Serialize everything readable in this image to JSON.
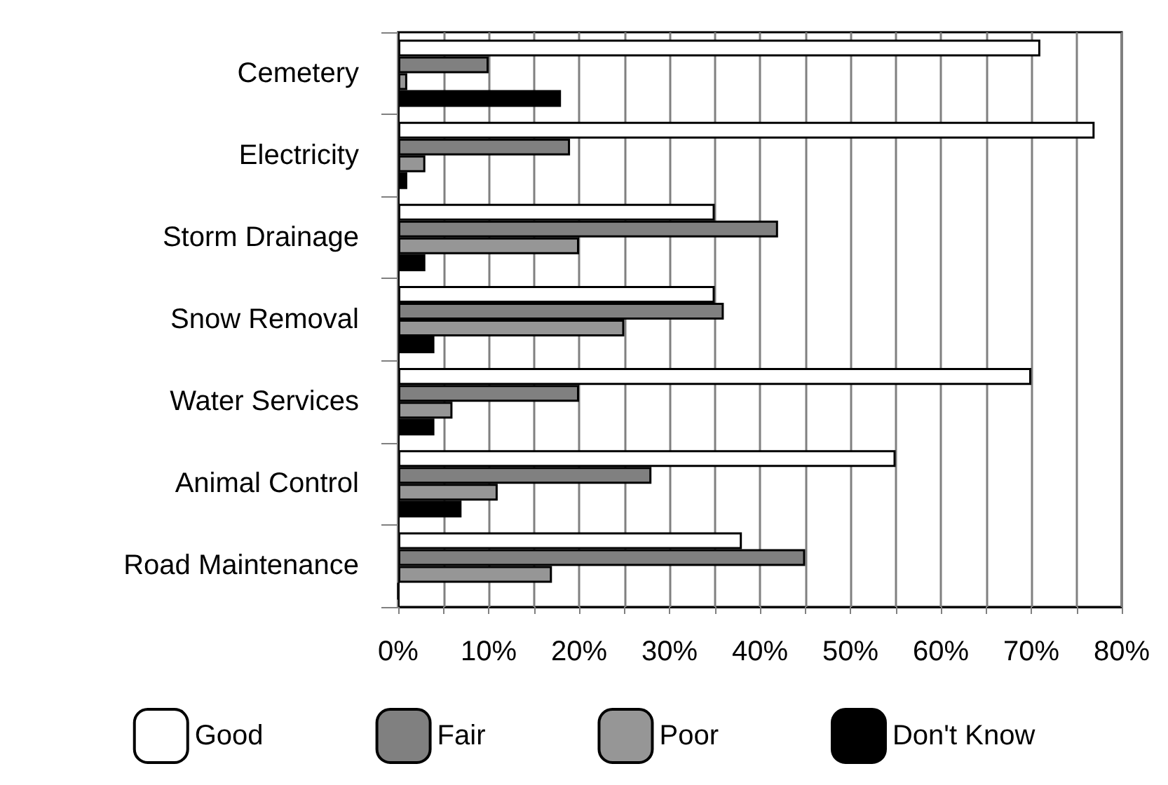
{
  "chart_data": {
    "type": "bar",
    "orientation": "horizontal",
    "categories": [
      "Cemetery",
      "Electricity",
      "Storm Drainage",
      "Snow Removal",
      "Water Services",
      "Animal Control",
      "Road Maintenance"
    ],
    "series": [
      {
        "name": "Good",
        "color": "#ffffff",
        "values": [
          71,
          77,
          35,
          35,
          70,
          55,
          38
        ]
      },
      {
        "name": "Fair",
        "color": "#808080",
        "values": [
          10,
          19,
          42,
          36,
          20,
          28,
          45
        ]
      },
      {
        "name": "Poor",
        "color": "#969696",
        "values": [
          1,
          3,
          20,
          25,
          6,
          11,
          17
        ]
      },
      {
        "name": "Don't Know",
        "color": "#000000",
        "values": [
          18,
          1,
          3,
          4,
          4,
          7,
          0
        ]
      }
    ],
    "xlim": [
      0,
      80
    ],
    "xticks": [
      {
        "value": 0,
        "label": "0%"
      },
      {
        "value": 5,
        "label": null
      },
      {
        "value": 10,
        "label": "10%"
      },
      {
        "value": 15,
        "label": null
      },
      {
        "value": 20,
        "label": "20%"
      },
      {
        "value": 25,
        "label": null
      },
      {
        "value": 30,
        "label": "30%"
      },
      {
        "value": 35,
        "label": null
      },
      {
        "value": 40,
        "label": "40%"
      },
      {
        "value": 45,
        "label": null
      },
      {
        "value": 50,
        "label": "50%"
      },
      {
        "value": 55,
        "label": null
      },
      {
        "value": 60,
        "label": "60%"
      },
      {
        "value": 65,
        "label": null
      },
      {
        "value": 70,
        "label": "70%"
      },
      {
        "value": 75,
        "label": null
      },
      {
        "value": 80,
        "label": "80%"
      }
    ],
    "grid": "x",
    "legend": "bottom"
  }
}
